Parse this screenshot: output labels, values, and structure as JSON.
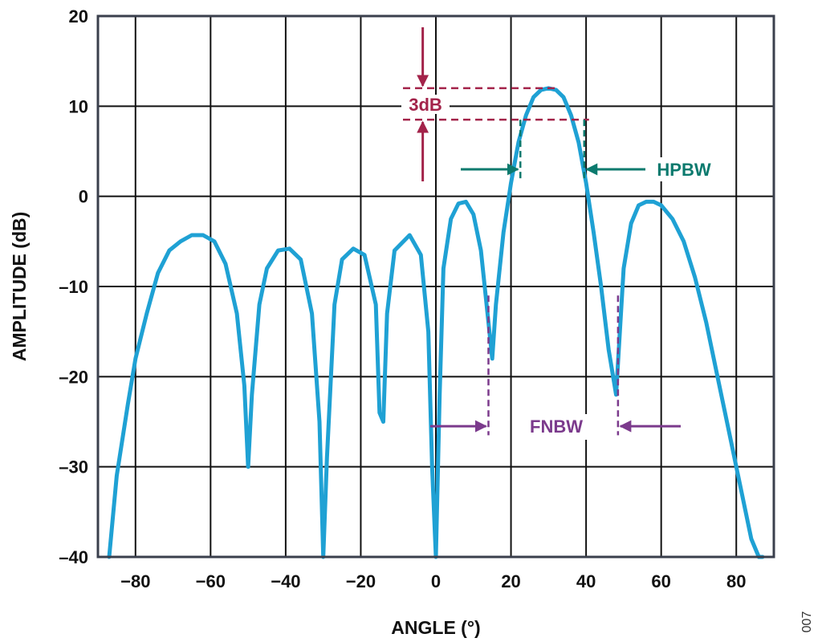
{
  "figure_id": "007",
  "colors": {
    "curve": "#1fa1d4",
    "threshold_3db": "#a3234a",
    "hpbw": "#0b7a6e",
    "fnbw": "#7b3a8c",
    "grid": "#111111",
    "frame": "#3a3f4c"
  },
  "chart_data": {
    "type": "line",
    "title": "",
    "xlabel": "ANGLE (°)",
    "ylabel": "AMPLITUDE (dB)",
    "xlim": [
      -90,
      90
    ],
    "ylim": [
      -40,
      20
    ],
    "x_ticks": [
      -80,
      -60,
      -40,
      -20,
      0,
      20,
      40,
      60,
      80
    ],
    "x_tick_labels": [
      "−80",
      "−60",
      "−40",
      "−20",
      "0",
      "20",
      "40",
      "60",
      "80"
    ],
    "y_ticks": [
      -40,
      -30,
      -20,
      -10,
      0,
      10,
      20
    ],
    "y_tick_labels": [
      "–40",
      "–30",
      "–20",
      "–10",
      "0",
      "10",
      "20"
    ],
    "grid": true,
    "legend": "none",
    "series": [
      {
        "x": [
          -87,
          -85,
          -82,
          -80,
          -77,
          -74,
          -71,
          -68,
          -65,
          -62,
          -59,
          -56,
          -53,
          -51,
          -50,
          -49,
          -47,
          -45,
          -42,
          -39,
          -36,
          -33,
          -31,
          -30,
          -29,
          -27,
          -25,
          -22,
          -19,
          -16,
          -15,
          -14,
          -13,
          -11,
          -7,
          -4,
          -2,
          -1,
          0,
          1,
          2,
          4,
          6,
          8,
          10,
          12,
          14,
          15,
          16,
          18,
          20,
          22,
          24,
          26,
          28,
          30,
          32,
          34,
          36,
          38,
          40,
          42,
          44,
          46,
          48,
          49,
          50,
          52,
          54,
          56,
          58,
          60,
          63,
          66,
          69,
          72,
          75,
          78,
          81,
          84,
          86,
          87
        ],
        "y": [
          -40,
          -31,
          -23,
          -18,
          -13,
          -8.5,
          -6,
          -5,
          -4.3,
          -4.3,
          -5,
          -7.5,
          -13,
          -21,
          -30,
          -22,
          -12,
          -8,
          -6,
          -5.8,
          -7,
          -13,
          -25,
          -40,
          -29,
          -12,
          -7,
          -5.8,
          -6.5,
          -12,
          -24,
          -25,
          -13,
          -6,
          -4.3,
          -6.5,
          -15,
          -30,
          -40,
          -22,
          -8,
          -2.5,
          -0.8,
          -0.6,
          -2,
          -6,
          -14,
          -18,
          -12,
          -4,
          1.5,
          6,
          9,
          11,
          11.8,
          12,
          11.8,
          11,
          9,
          6,
          1.5,
          -4,
          -10,
          -17,
          -22,
          -15,
          -8,
          -3,
          -1,
          -0.6,
          -0.6,
          -1,
          -2.5,
          -5,
          -9,
          -14,
          -20,
          -26,
          -32,
          -38,
          -40,
          -40
        ]
      }
    ],
    "annotations": [
      {
        "label": "3dB",
        "top": 12,
        "bottom": 8.5,
        "arrow_x": -3.5
      },
      {
        "label": "HPBW",
        "x_left": 22.5,
        "x_right": 39.5,
        "y": 3,
        "mark_top": 8.5,
        "mark_bottom": 2
      },
      {
        "label": "FNBW",
        "x_left": 14,
        "x_right": 48.5,
        "y": -25.5,
        "mark_top": -11,
        "mark_bottom": -26.5
      }
    ]
  }
}
